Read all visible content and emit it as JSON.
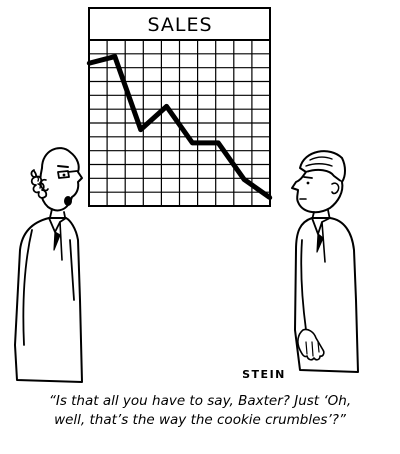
{
  "chart": {
    "title": "SALES"
  },
  "chart_data": {
    "type": "line",
    "title": "SALES",
    "x": [
      0,
      1,
      2,
      3,
      4,
      5,
      6,
      7
    ],
    "y": [
      8.6,
      9.0,
      4.6,
      6.0,
      3.8,
      3.8,
      1.6,
      0.5
    ],
    "grid": true,
    "legend": "none"
  },
  "signature": "STEIN",
  "caption": {
    "line1": "“Is that all you have to say, Baxter? Just ‘Oh,",
    "line2": "well, that’s the way the cookie crumbles’?”"
  }
}
